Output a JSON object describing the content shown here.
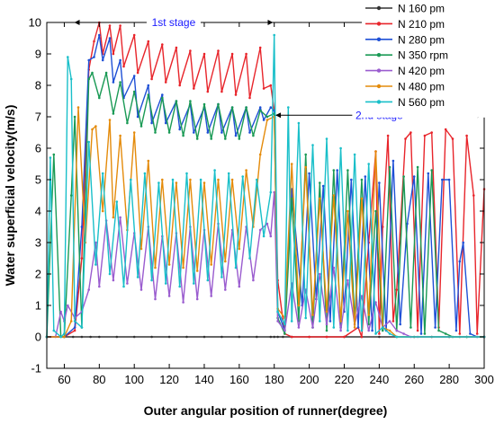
{
  "chart_data": {
    "type": "line",
    "xlabel": "Outer angular position of runner(degree)",
    "ylabel": "Water superficial velocity(m/s)",
    "xlim": [
      50,
      300
    ],
    "ylim": [
      -1,
      10
    ],
    "xticks": [
      60,
      80,
      100,
      120,
      140,
      160,
      180,
      200,
      220,
      240,
      260,
      280,
      300
    ],
    "yticks": [
      -1,
      0,
      1,
      2,
      3,
      4,
      5,
      6,
      7,
      8,
      9,
      10
    ],
    "grid": false,
    "legend_position": "top-right",
    "annotations": [
      {
        "text": "1st stage",
        "x_from": 66,
        "x_to": 179,
        "y": 10.0
      },
      {
        "text": "2nd stage",
        "x_from": 181,
        "x_to": 299,
        "y": 7.05
      }
    ],
    "series": [
      {
        "name": "N 160 pm",
        "color": "#333333",
        "x": [
          50,
          60,
          65,
          70,
          75,
          80,
          90,
          100,
          110,
          120,
          130,
          140,
          150,
          160,
          170,
          178,
          180,
          182,
          185,
          190,
          200,
          210,
          220,
          230,
          240,
          250,
          260,
          270,
          280,
          290,
          300
        ],
        "y": [
          0,
          0,
          0,
          0,
          0,
          0,
          0,
          0,
          0,
          0,
          0,
          0,
          0,
          0,
          0,
          0,
          0,
          0,
          0,
          0,
          0,
          0,
          0,
          0,
          0,
          0,
          0,
          0,
          0,
          0,
          0
        ]
      },
      {
        "name": "N 210 pm",
        "color": "#e8252b",
        "x": [
          50,
          60,
          66,
          70,
          74,
          77,
          80,
          82,
          86,
          88,
          92,
          94,
          100,
          102,
          108,
          110,
          116,
          118,
          124,
          126,
          132,
          134,
          140,
          142,
          148,
          150,
          156,
          158,
          164,
          166,
          172,
          174,
          178,
          180,
          182,
          186,
          190,
          200,
          210,
          220,
          228,
          230,
          234,
          238,
          240,
          242,
          245,
          248,
          250,
          255,
          258,
          262,
          266,
          270,
          274,
          278,
          282,
          286,
          290,
          294,
          296,
          300
        ],
        "y": [
          0,
          0,
          0.2,
          2.5,
          8.5,
          9.4,
          10.0,
          9.0,
          9.9,
          9.0,
          9.9,
          8.6,
          9.6,
          8.4,
          9.4,
          8.2,
          9.3,
          8.1,
          9.2,
          8.0,
          9.1,
          7.9,
          9.0,
          7.8,
          9.1,
          7.8,
          9.0,
          7.7,
          9.0,
          7.6,
          9.2,
          7.9,
          8.0,
          7.2,
          1.8,
          0.1,
          0.0,
          0.0,
          0.0,
          0.0,
          0.3,
          0.0,
          3.0,
          5.9,
          0.1,
          3.5,
          6.4,
          0.5,
          1.5,
          6.3,
          6.5,
          0.2,
          6.4,
          6.5,
          0.3,
          6.6,
          6.3,
          0.1,
          6.4,
          4.5,
          0.1,
          4.7
        ]
      },
      {
        "name": "N 280 pm",
        "color": "#1f50d6",
        "x": [
          50,
          60,
          66,
          70,
          74,
          77,
          80,
          82,
          86,
          88,
          92,
          94,
          100,
          102,
          108,
          110,
          116,
          118,
          124,
          126,
          132,
          134,
          140,
          142,
          148,
          150,
          156,
          158,
          164,
          166,
          172,
          174,
          178,
          180,
          182,
          186,
          190,
          196,
          200,
          204,
          208,
          212,
          216,
          220,
          224,
          228,
          232,
          236,
          240,
          244,
          248,
          252,
          256,
          260,
          264,
          268,
          272,
          276,
          280,
          284,
          286,
          288,
          292,
          296,
          300
        ],
        "y": [
          0,
          0,
          0.3,
          3.5,
          8.8,
          8.9,
          9.6,
          8.8,
          9.5,
          8.1,
          8.8,
          7.6,
          8.3,
          7.0,
          8.0,
          6.8,
          7.7,
          6.8,
          7.5,
          6.6,
          7.4,
          6.5,
          7.3,
          6.5,
          7.4,
          6.5,
          7.3,
          6.4,
          7.3,
          6.5,
          7.3,
          6.9,
          7.3,
          7.2,
          0.8,
          0.2,
          4.7,
          1.0,
          5.2,
          1.2,
          4.8,
          0.5,
          5.3,
          0.8,
          5.0,
          0.3,
          5.1,
          0.2,
          4.9,
          0.2,
          5.6,
          0.4,
          3.6,
          5.1,
          0.1,
          5.2,
          0.3,
          5.0,
          5.0,
          0.2,
          2.4,
          3.0,
          0.1,
          0.0,
          0.0
        ]
      },
      {
        "name": "N 350 rpm",
        "color": "#1a9a55",
        "x": [
          50,
          54,
          58,
          60,
          64,
          66,
          70,
          74,
          76,
          80,
          84,
          88,
          92,
          96,
          100,
          104,
          108,
          112,
          116,
          120,
          124,
          128,
          132,
          136,
          140,
          144,
          148,
          152,
          156,
          160,
          164,
          168,
          172,
          176,
          180,
          182,
          186,
          190,
          194,
          198,
          202,
          206,
          210,
          214,
          218,
          222,
          226,
          230,
          234,
          238,
          242,
          246,
          250,
          254,
          258,
          262,
          266,
          270,
          274,
          278,
          282,
          286,
          290,
          300
        ],
        "y": [
          0,
          5.8,
          0.0,
          0.0,
          4.5,
          7.0,
          0.3,
          8.2,
          8.4,
          7.6,
          8.4,
          7.1,
          8.1,
          6.8,
          7.8,
          6.7,
          7.7,
          6.5,
          7.6,
          6.5,
          7.5,
          6.4,
          7.5,
          6.3,
          7.4,
          6.3,
          7.4,
          6.3,
          7.3,
          6.3,
          7.3,
          6.4,
          7.2,
          7.0,
          7.1,
          0.6,
          0.1,
          4.4,
          0.5,
          5.8,
          0.3,
          4.9,
          0.2,
          5.3,
          0.3,
          5.3,
          0.5,
          5.0,
          0.4,
          4.0,
          0.2,
          5.4,
          0.2,
          5.1,
          0.3,
          5.4,
          0.1,
          5.3,
          0.2,
          0.1,
          0.0,
          0.0,
          0.0,
          0.0
        ]
      },
      {
        "name": "N 420 pm",
        "color": "#9a5ccf",
        "x": [
          50,
          55,
          58,
          60,
          62,
          66,
          70,
          74,
          78,
          80,
          84,
          88,
          92,
          96,
          100,
          104,
          108,
          112,
          116,
          120,
          124,
          128,
          132,
          136,
          140,
          144,
          148,
          152,
          156,
          160,
          164,
          168,
          172,
          176,
          178,
          180,
          182,
          186,
          190,
          194,
          198,
          202,
          206,
          210,
          214,
          218,
          222,
          226,
          230,
          234,
          238,
          242,
          246,
          250,
          254,
          258,
          262,
          300
        ],
        "y": [
          0,
          0,
          0.8,
          0.5,
          1.0,
          0.6,
          0.8,
          1.5,
          3.0,
          1.6,
          3.7,
          1.8,
          3.8,
          1.7,
          3.3,
          1.5,
          3.5,
          1.2,
          3.2,
          1.3,
          3.3,
          1.1,
          3.5,
          1.2,
          3.4,
          1.3,
          3.6,
          1.5,
          3.4,
          1.6,
          3.5,
          1.8,
          3.4,
          3.6,
          3.2,
          4.6,
          0.5,
          0.2,
          1.7,
          0.3,
          1.5,
          0.3,
          2.0,
          0.4,
          2.2,
          0.2,
          1.8,
          0.4,
          1.3,
          0.2,
          1.1,
          0.3,
          0.5,
          0.2,
          0.1,
          0.0,
          0.0,
          0.0
        ]
      },
      {
        "name": "N 480 pm",
        "color": "#e48b0b",
        "x": [
          50,
          60,
          64,
          68,
          72,
          76,
          78,
          82,
          86,
          88,
          92,
          96,
          100,
          104,
          108,
          112,
          116,
          120,
          124,
          128,
          132,
          136,
          140,
          144,
          148,
          152,
          156,
          160,
          164,
          168,
          172,
          176,
          180,
          182,
          186,
          190,
          194,
          198,
          202,
          206,
          210,
          214,
          218,
          222,
          226,
          230,
          234,
          238,
          242,
          246,
          250,
          300
        ],
        "y": [
          0,
          0,
          0.5,
          7.3,
          3.0,
          6.6,
          6.7,
          4.0,
          6.9,
          3.8,
          6.4,
          3.4,
          6.5,
          2.8,
          5.6,
          2.2,
          5.0,
          2.3,
          4.9,
          2.2,
          5.0,
          2.1,
          4.9,
          2.3,
          5.0,
          2.4,
          5.0,
          2.8,
          5.3,
          3.5,
          5.8,
          6.9,
          7.0,
          0.9,
          0.6,
          5.5,
          1.0,
          5.4,
          0.7,
          4.4,
          0.8,
          4.5,
          0.5,
          4.0,
          0.3,
          4.4,
          0.7,
          5.9,
          0.3,
          0.2,
          0.0,
          0.0
        ]
      },
      {
        "name": "N 560 pm",
        "color": "#19bfc9",
        "x": [
          50,
          52,
          54,
          58,
          60,
          62,
          64,
          66,
          70,
          74,
          78,
          82,
          86,
          90,
          94,
          98,
          102,
          106,
          110,
          114,
          118,
          122,
          126,
          130,
          134,
          138,
          142,
          146,
          150,
          154,
          158,
          162,
          166,
          170,
          174,
          178,
          180,
          182,
          186,
          188,
          190,
          194,
          198,
          202,
          206,
          210,
          214,
          218,
          222,
          226,
          230,
          234,
          238,
          242,
          246,
          250,
          300
        ],
        "y": [
          0,
          5.7,
          0.2,
          0.0,
          0.1,
          8.9,
          8.2,
          0.5,
          0.3,
          6.2,
          2.3,
          5.2,
          2.0,
          4.3,
          1.6,
          5.0,
          1.9,
          5.2,
          1.8,
          4.9,
          1.7,
          5.0,
          1.6,
          5.2,
          1.7,
          5.0,
          1.8,
          5.3,
          1.9,
          5.2,
          2.2,
          5.1,
          2.5,
          5.0,
          3.2,
          4.6,
          9.6,
          0.8,
          0.4,
          7.3,
          0.5,
          6.8,
          0.6,
          6.1,
          0.5,
          6.3,
          0.3,
          6.0,
          0.2,
          5.8,
          0.2,
          5.5,
          0.1,
          0.3,
          0.1,
          0.0,
          0.0
        ]
      }
    ]
  }
}
